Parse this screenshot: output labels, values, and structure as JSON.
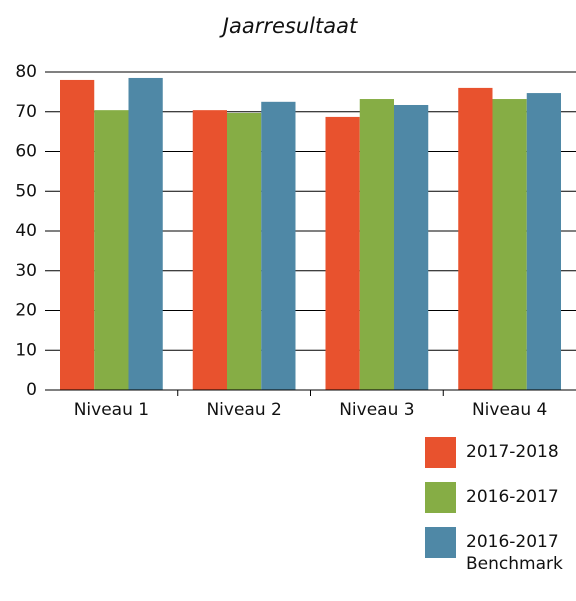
{
  "chart_data": {
    "type": "bar",
    "title": "Jaarresultaat",
    "categories": [
      "Niveau 1",
      "Niveau 2",
      "Niveau 3",
      "Niveau 4"
    ],
    "series": [
      {
        "name": "2017-2018",
        "color": "#e8522e",
        "values": [
          78.0,
          70.4,
          68.7,
          76.0
        ]
      },
      {
        "name": "2016-2017",
        "color": "#86ad45",
        "values": [
          70.4,
          69.7,
          73.2,
          73.2
        ]
      },
      {
        "name": "2016-2017 Benchmark",
        "color": "#4f88a6",
        "values": [
          78.5,
          72.5,
          71.7,
          74.7
        ]
      }
    ],
    "ylim": [
      0,
      80
    ],
    "yticks": [
      0,
      10,
      20,
      30,
      40,
      50,
      60,
      70,
      80
    ],
    "grid": true
  }
}
